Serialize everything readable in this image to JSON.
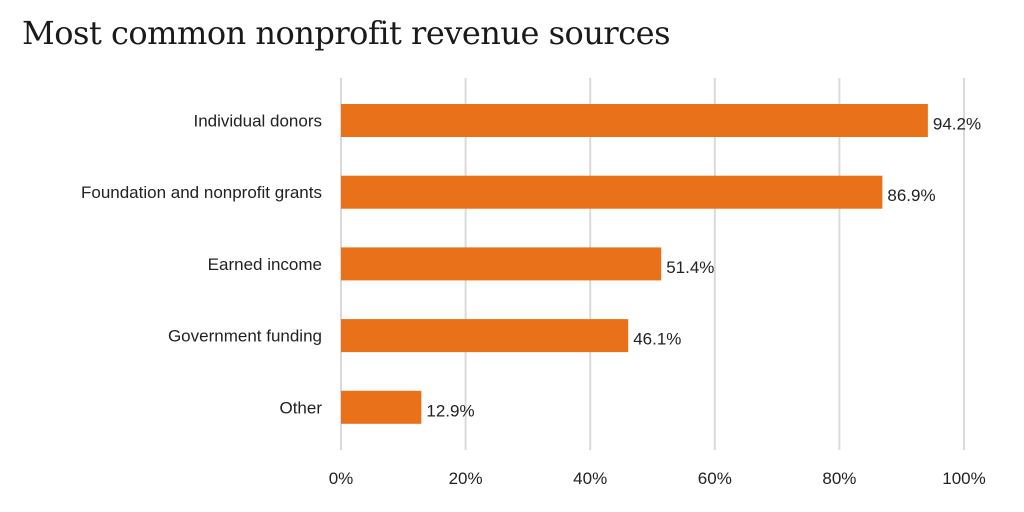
{
  "chart_data": {
    "type": "bar",
    "orientation": "horizontal",
    "title": "Most common nonprofit revenue sources",
    "categories": [
      "Individual donors",
      "Foundation and nonprofit grants",
      "Earned income",
      "Government funding",
      "Other"
    ],
    "values": [
      94.2,
      86.9,
      51.4,
      46.1,
      12.9
    ],
    "value_labels": [
      "94.2%",
      "86.9%",
      "51.4%",
      "46.1%",
      "12.9%"
    ],
    "xlabel": "",
    "ylabel": "",
    "xlim": [
      0,
      100
    ],
    "x_ticks": [
      "0%",
      "20%",
      "40%",
      "60%",
      "80%",
      "100%"
    ],
    "grid": "vertical",
    "bar_color": "#E8711A",
    "grid_color": "#DDD8DA"
  }
}
